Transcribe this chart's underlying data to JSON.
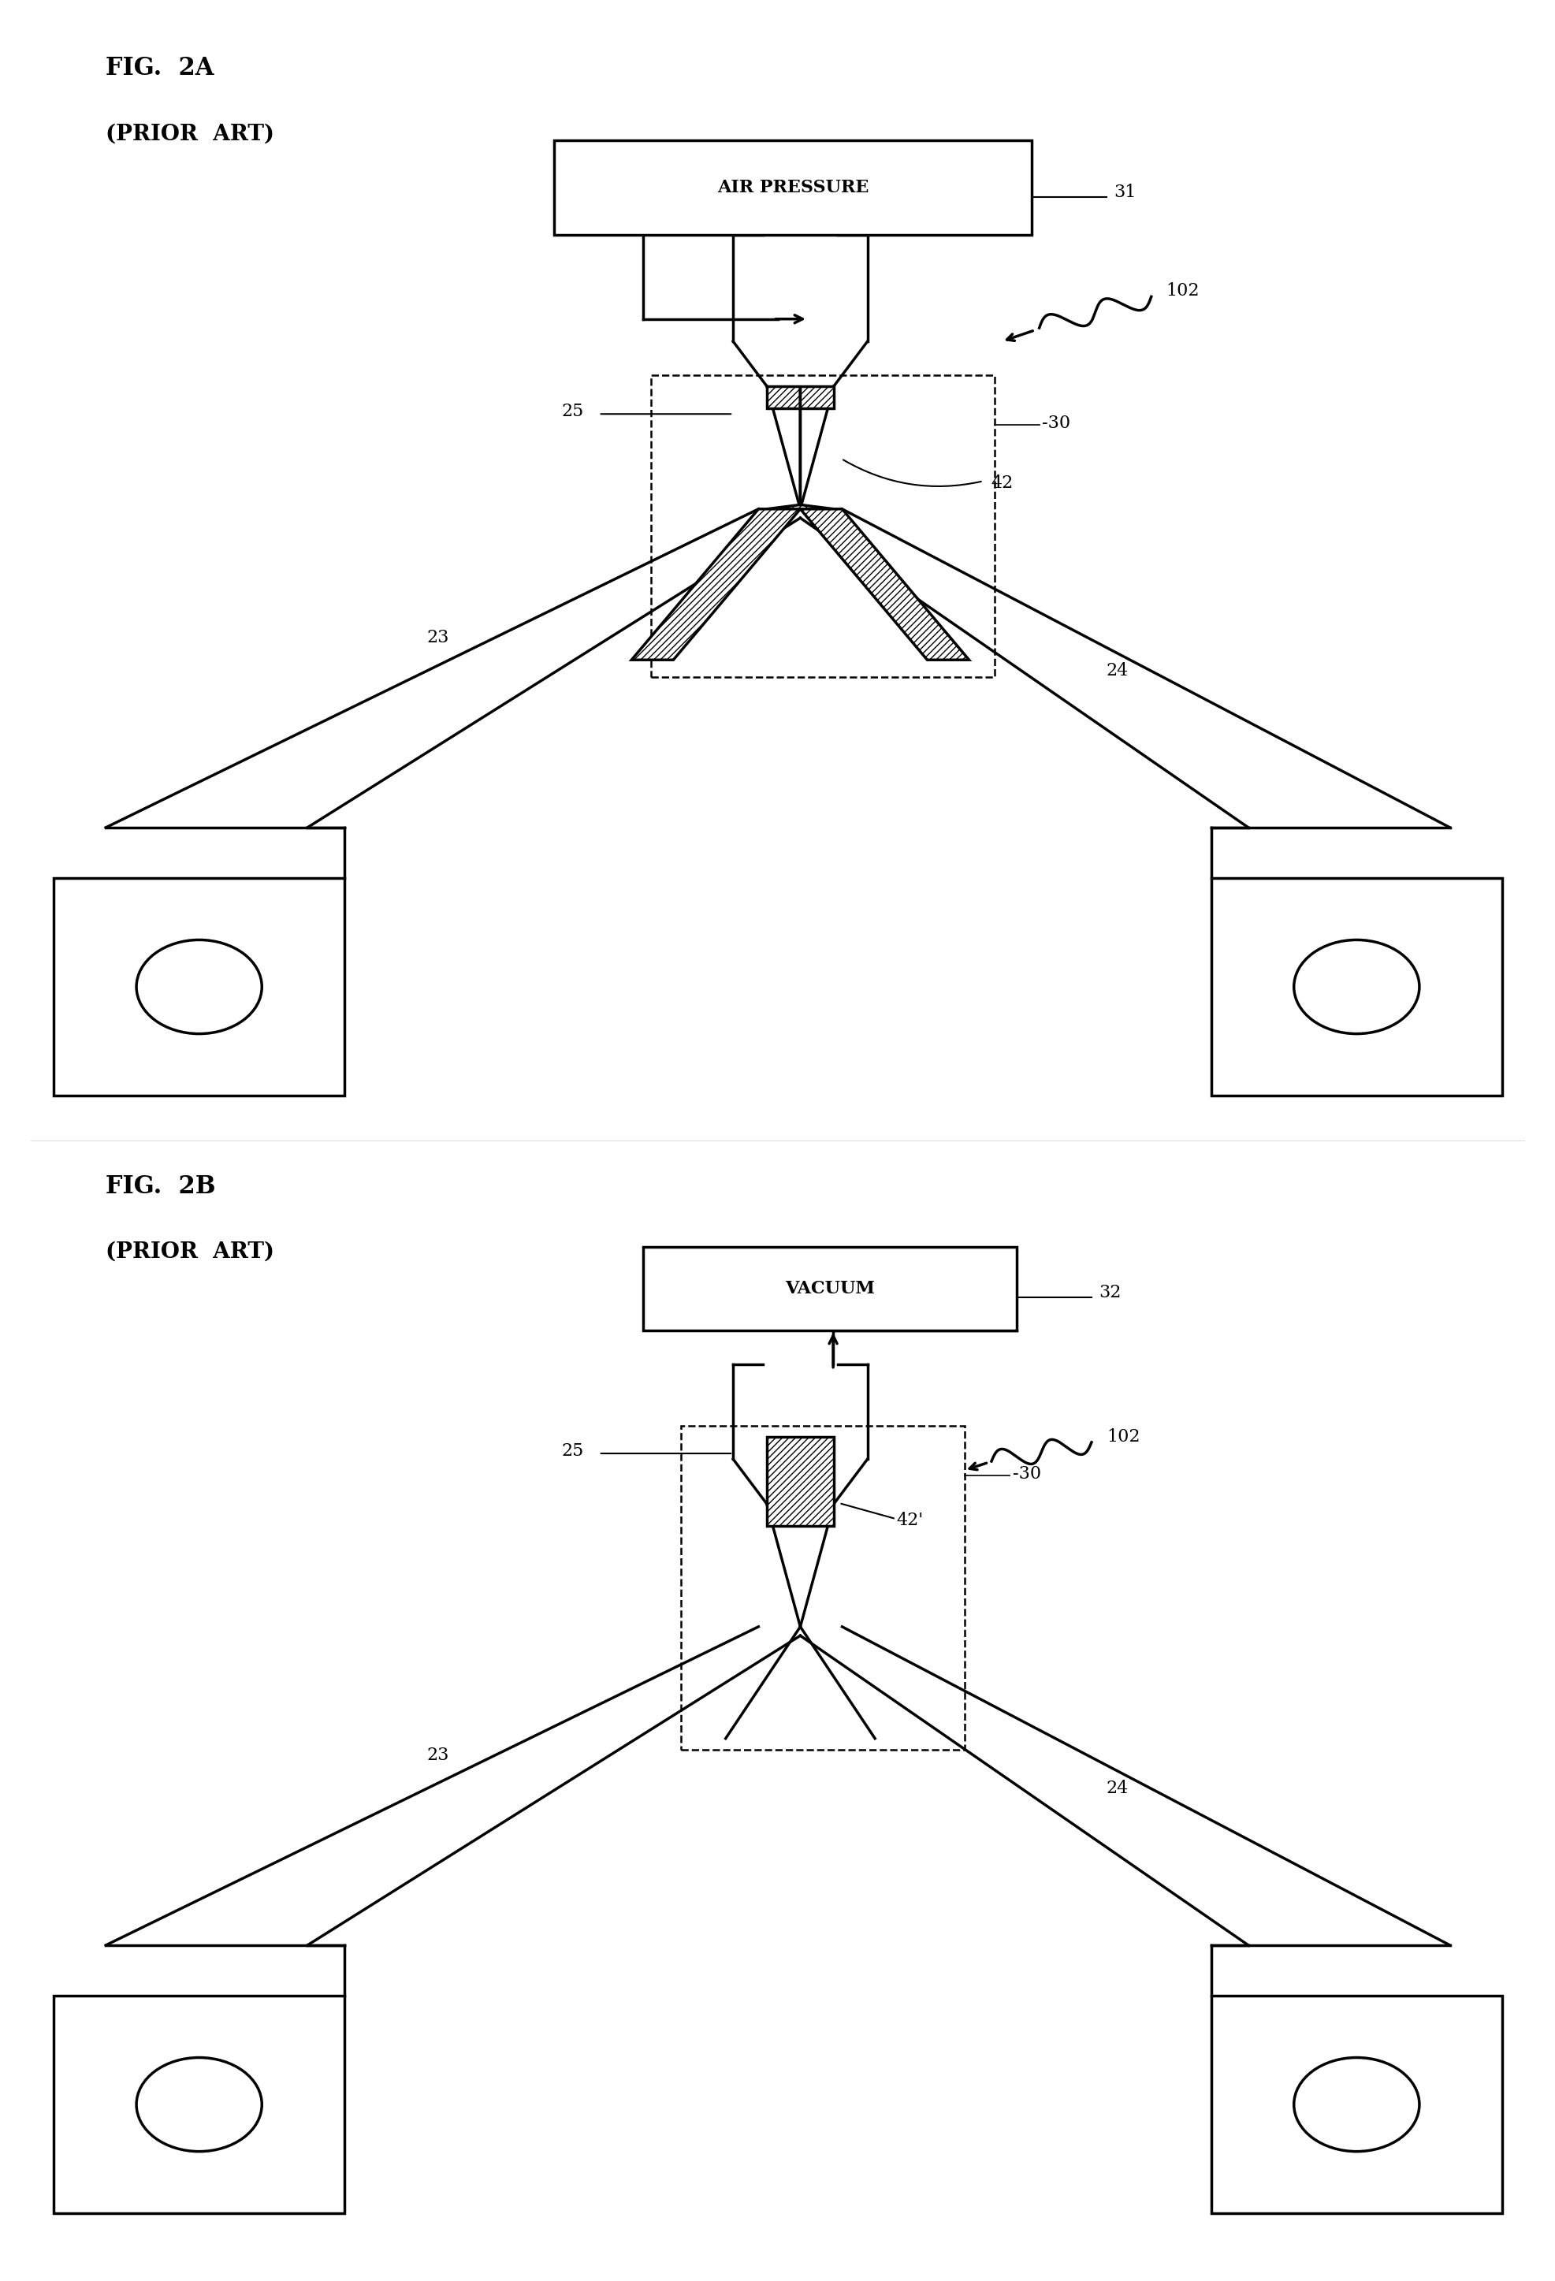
{
  "bg_color": "#ffffff",
  "line_color": "#000000",
  "fig_width": 19.74,
  "fig_height": 28.94,
  "fig2a_title": "FIG.  2A",
  "fig2a_subtitle": "(PRIOR  ART)",
  "fig2b_title": "FIG.  2B",
  "fig2b_subtitle": "(PRIOR  ART)",
  "label_31": "31",
  "label_32": "32",
  "label_102a": "102",
  "label_102b": "102",
  "label_25a": "25",
  "label_25b": "25",
  "label_30a": "-30",
  "label_30b": "-30",
  "label_42a": "42",
  "label_42b": "42'",
  "label_23a": "23",
  "label_23b": "23",
  "label_24a": "24",
  "label_24b": "24",
  "box_air_pressure": "AIR PRESSURE",
  "box_vacuum": "VACUUM"
}
